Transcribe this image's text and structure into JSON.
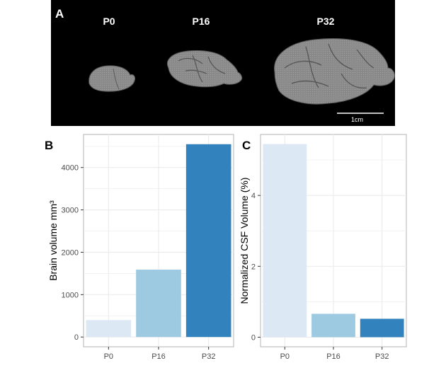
{
  "panel_a": {
    "letter": "A",
    "ages": [
      "P0",
      "P16",
      "P32"
    ],
    "scale_bar_label": "1cm",
    "background": "#000000",
    "brain_color": "#8c8c8c"
  },
  "colors": {
    "P0": "#dce9f5",
    "P16": "#9ecae1",
    "P32": "#3182bd",
    "panel_border": "#b3b3b3",
    "grid": "#ebebeb",
    "axis_text": "#4d4d4d"
  },
  "chart_data": [
    {
      "panel": "B",
      "type": "bar",
      "categories": [
        "P0",
        "P16",
        "P32"
      ],
      "values": [
        400,
        1590,
        4550
      ],
      "ylabel": "Brain volume mm³",
      "xlabel": "",
      "yticks": [
        0,
        1000,
        2000,
        3000,
        4000
      ],
      "ylim": [
        -230,
        4780
      ],
      "grid": true,
      "legend": "none"
    },
    {
      "panel": "C",
      "type": "bar",
      "categories": [
        "P0",
        "P16",
        "P32"
      ],
      "values": [
        5.45,
        0.66,
        0.52
      ],
      "ylabel": "Normalized CSF Volume (%)",
      "xlabel": "",
      "yticks": [
        0,
        2,
        4
      ],
      "ylim": [
        -0.27,
        5.72
      ],
      "grid": true,
      "legend": "none"
    }
  ]
}
